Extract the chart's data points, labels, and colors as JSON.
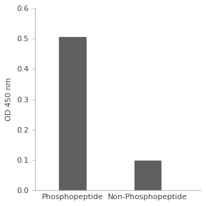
{
  "categories": [
    "Phosphopeptide",
    "Non-Phosphopeptide"
  ],
  "values": [
    0.505,
    0.098
  ],
  "bar_color": "#606060",
  "ylabel": "OD 450 nm",
  "ylim": [
    0,
    0.6
  ],
  "yticks": [
    0,
    0.1,
    0.2,
    0.3,
    0.4,
    0.5,
    0.6
  ],
  "bar_width": 0.35,
  "background_color": "#ffffff",
  "tick_fontsize": 8,
  "label_fontsize": 8
}
